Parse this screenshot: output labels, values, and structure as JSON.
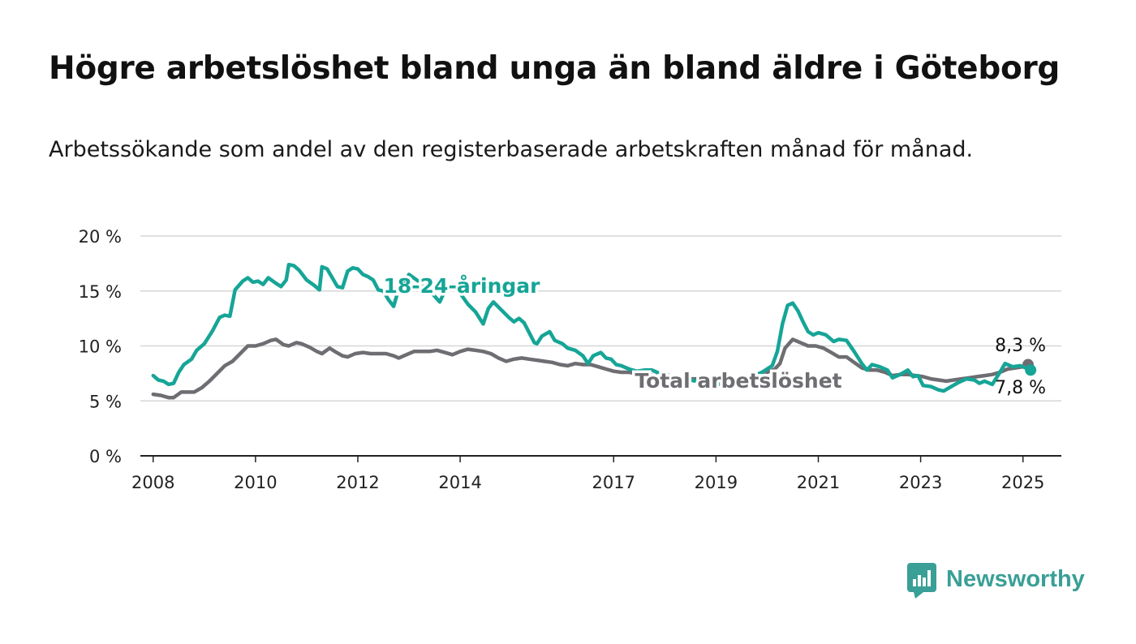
{
  "header": {
    "title": "Högre arbetslöshet bland unga än bland äldre i Göteborg",
    "subtitle": "Arbetssökande som andel av den registerbaserade arbetskraften månad för månad."
  },
  "brand": {
    "name": "Newsworthy",
    "icon": "bar-chart-speech-bubble-icon",
    "color": "#3a9f96"
  },
  "chart_data": {
    "type": "line",
    "x_unit": "year",
    "xlim": [
      2007.75,
      2025.75
    ],
    "ylim": [
      0,
      20
    ],
    "y_ticks": [
      {
        "value": 0,
        "label": "0 %"
      },
      {
        "value": 5,
        "label": "5 %"
      },
      {
        "value": 10,
        "label": "10 %"
      },
      {
        "value": 15,
        "label": "15 %"
      },
      {
        "value": 20,
        "label": "20 %"
      }
    ],
    "x_ticks": [
      {
        "value": 2008,
        "label": "2008"
      },
      {
        "value": 2010,
        "label": "2010"
      },
      {
        "value": 2012,
        "label": "2012"
      },
      {
        "value": 2014,
        "label": "2014"
      },
      {
        "value": 2017,
        "label": "2017"
      },
      {
        "value": 2019,
        "label": "2019"
      },
      {
        "value": 2021,
        "label": "2021"
      },
      {
        "value": 2023,
        "label": "2023"
      },
      {
        "value": 2025,
        "label": "2025"
      }
    ],
    "grid": "horizontal",
    "series": [
      {
        "name": "Total arbetslöshet",
        "color": "#6e6d72",
        "end_label": "8,3 %",
        "points": [
          [
            2008.0,
            5.6
          ],
          [
            2008.15,
            5.5
          ],
          [
            2008.3,
            5.3
          ],
          [
            2008.4,
            5.3
          ],
          [
            2008.55,
            5.8
          ],
          [
            2008.7,
            5.8
          ],
          [
            2008.8,
            5.8
          ],
          [
            2008.95,
            6.2
          ],
          [
            2009.1,
            6.8
          ],
          [
            2009.25,
            7.5
          ],
          [
            2009.4,
            8.2
          ],
          [
            2009.55,
            8.6
          ],
          [
            2009.7,
            9.3
          ],
          [
            2009.85,
            10.0
          ],
          [
            2010.0,
            10.0
          ],
          [
            2010.15,
            10.2
          ],
          [
            2010.3,
            10.5
          ],
          [
            2010.4,
            10.6
          ],
          [
            2010.55,
            10.1
          ],
          [
            2010.65,
            10.0
          ],
          [
            2010.8,
            10.3
          ],
          [
            2010.9,
            10.2
          ],
          [
            2011.05,
            9.9
          ],
          [
            2011.2,
            9.5
          ],
          [
            2011.3,
            9.3
          ],
          [
            2011.45,
            9.8
          ],
          [
            2011.55,
            9.5
          ],
          [
            2011.7,
            9.1
          ],
          [
            2011.8,
            9.0
          ],
          [
            2011.95,
            9.3
          ],
          [
            2012.1,
            9.4
          ],
          [
            2012.25,
            9.3
          ],
          [
            2012.4,
            9.3
          ],
          [
            2012.55,
            9.3
          ],
          [
            2012.7,
            9.1
          ],
          [
            2012.8,
            8.9
          ],
          [
            2012.95,
            9.2
          ],
          [
            2013.1,
            9.5
          ],
          [
            2013.25,
            9.5
          ],
          [
            2013.4,
            9.5
          ],
          [
            2013.55,
            9.6
          ],
          [
            2013.7,
            9.4
          ],
          [
            2013.85,
            9.2
          ],
          [
            2014.0,
            9.5
          ],
          [
            2014.15,
            9.7
          ],
          [
            2014.3,
            9.6
          ],
          [
            2014.45,
            9.5
          ],
          [
            2014.6,
            9.3
          ],
          [
            2014.75,
            8.9
          ],
          [
            2014.9,
            8.6
          ],
          [
            2015.05,
            8.8
          ],
          [
            2015.2,
            8.9
          ],
          [
            2015.35,
            8.8
          ],
          [
            2015.5,
            8.7
          ],
          [
            2015.65,
            8.6
          ],
          [
            2015.8,
            8.5
          ],
          [
            2015.95,
            8.3
          ],
          [
            2016.1,
            8.2
          ],
          [
            2016.25,
            8.4
          ],
          [
            2016.4,
            8.3
          ],
          [
            2016.55,
            8.3
          ],
          [
            2016.7,
            8.1
          ],
          [
            2016.85,
            7.9
          ],
          [
            2017.0,
            7.7
          ],
          [
            2017.15,
            7.6
          ],
          [
            2017.3,
            7.6
          ],
          [
            2017.45,
            7.5
          ],
          [
            2017.6,
            7.4
          ],
          [
            2017.8,
            7.3
          ],
          [
            2018.0,
            7.2
          ],
          [
            2018.2,
            7.1
          ],
          [
            2018.4,
            7.0
          ],
          [
            2018.6,
            7.0
          ],
          [
            2018.8,
            6.9
          ],
          [
            2019.0,
            7.0
          ],
          [
            2019.2,
            7.0
          ],
          [
            2019.4,
            7.0
          ],
          [
            2019.6,
            7.1
          ],
          [
            2019.8,
            7.3
          ],
          [
            2020.0,
            7.6
          ],
          [
            2020.15,
            7.9
          ],
          [
            2020.25,
            8.4
          ],
          [
            2020.35,
            9.8
          ],
          [
            2020.5,
            10.6
          ],
          [
            2020.65,
            10.3
          ],
          [
            2020.8,
            10.0
          ],
          [
            2020.95,
            10.0
          ],
          [
            2021.1,
            9.8
          ],
          [
            2021.25,
            9.4
          ],
          [
            2021.4,
            9.0
          ],
          [
            2021.55,
            9.0
          ],
          [
            2021.7,
            8.5
          ],
          [
            2021.85,
            8.0
          ],
          [
            2022.0,
            7.8
          ],
          [
            2022.15,
            7.8
          ],
          [
            2022.3,
            7.6
          ],
          [
            2022.45,
            7.3
          ],
          [
            2022.6,
            7.4
          ],
          [
            2022.75,
            7.4
          ],
          [
            2022.9,
            7.3
          ],
          [
            2023.05,
            7.2
          ],
          [
            2023.2,
            7.0
          ],
          [
            2023.35,
            6.9
          ],
          [
            2023.5,
            6.8
          ],
          [
            2023.65,
            6.9
          ],
          [
            2023.8,
            7.0
          ],
          [
            2023.95,
            7.1
          ],
          [
            2024.1,
            7.2
          ],
          [
            2024.25,
            7.3
          ],
          [
            2024.4,
            7.4
          ],
          [
            2024.55,
            7.6
          ],
          [
            2024.7,
            7.9
          ],
          [
            2024.85,
            8.0
          ],
          [
            2025.0,
            8.1
          ],
          [
            2025.1,
            8.3
          ]
        ]
      },
      {
        "name": "18-24-åringar",
        "color": "#16a597",
        "end_label": "7,8 %",
        "points": [
          [
            2008.0,
            7.3
          ],
          [
            2008.1,
            6.9
          ],
          [
            2008.2,
            6.8
          ],
          [
            2008.3,
            6.5
          ],
          [
            2008.4,
            6.6
          ],
          [
            2008.5,
            7.6
          ],
          [
            2008.6,
            8.3
          ],
          [
            2008.75,
            8.8
          ],
          [
            2008.85,
            9.6
          ],
          [
            2009.0,
            10.2
          ],
          [
            2009.15,
            11.3
          ],
          [
            2009.3,
            12.6
          ],
          [
            2009.4,
            12.8
          ],
          [
            2009.5,
            12.7
          ],
          [
            2009.6,
            15.1
          ],
          [
            2009.75,
            15.9
          ],
          [
            2009.85,
            16.2
          ],
          [
            2009.95,
            15.8
          ],
          [
            2010.05,
            15.9
          ],
          [
            2010.15,
            15.6
          ],
          [
            2010.25,
            16.2
          ],
          [
            2010.4,
            15.7
          ],
          [
            2010.5,
            15.4
          ],
          [
            2010.6,
            16.0
          ],
          [
            2010.65,
            17.4
          ],
          [
            2010.75,
            17.3
          ],
          [
            2010.85,
            16.9
          ],
          [
            2011.0,
            16.0
          ],
          [
            2011.15,
            15.5
          ],
          [
            2011.25,
            15.1
          ],
          [
            2011.3,
            17.2
          ],
          [
            2011.4,
            17.0
          ],
          [
            2011.5,
            16.2
          ],
          [
            2011.6,
            15.4
          ],
          [
            2011.7,
            15.3
          ],
          [
            2011.8,
            16.8
          ],
          [
            2011.9,
            17.1
          ],
          [
            2012.0,
            17.0
          ],
          [
            2012.1,
            16.5
          ],
          [
            2012.2,
            16.3
          ],
          [
            2012.3,
            16.0
          ],
          [
            2012.4,
            15.1
          ],
          [
            2012.5,
            15.0
          ],
          [
            2012.6,
            14.2
          ],
          [
            2012.7,
            13.6
          ],
          [
            2012.8,
            15.2
          ],
          [
            2012.9,
            15.6
          ],
          [
            2013.0,
            16.5
          ],
          [
            2013.15,
            16.0
          ],
          [
            2013.3,
            15.5
          ],
          [
            2013.45,
            14.8
          ],
          [
            2013.6,
            14.0
          ],
          [
            2013.7,
            15.0
          ],
          [
            2013.85,
            15.6
          ],
          [
            2014.0,
            14.8
          ],
          [
            2014.15,
            13.8
          ],
          [
            2014.3,
            13.1
          ],
          [
            2014.45,
            12.0
          ],
          [
            2014.55,
            13.4
          ],
          [
            2014.65,
            14.0
          ],
          [
            2014.8,
            13.3
          ],
          [
            2014.95,
            12.6
          ],
          [
            2015.05,
            12.2
          ],
          [
            2015.15,
            12.5
          ],
          [
            2015.25,
            12.1
          ],
          [
            2015.35,
            11.2
          ],
          [
            2015.45,
            10.3
          ],
          [
            2015.5,
            10.2
          ],
          [
            2015.6,
            10.9
          ],
          [
            2015.75,
            11.3
          ],
          [
            2015.85,
            10.5
          ],
          [
            2016.0,
            10.2
          ],
          [
            2016.1,
            9.8
          ],
          [
            2016.25,
            9.6
          ],
          [
            2016.4,
            9.1
          ],
          [
            2016.5,
            8.4
          ],
          [
            2016.6,
            9.1
          ],
          [
            2016.75,
            9.4
          ],
          [
            2016.85,
            8.9
          ],
          [
            2016.95,
            8.8
          ],
          [
            2017.05,
            8.3
          ],
          [
            2017.15,
            8.2
          ],
          [
            2017.3,
            7.9
          ],
          [
            2017.45,
            7.7
          ],
          [
            2017.6,
            7.8
          ],
          [
            2017.75,
            7.8
          ],
          [
            2017.9,
            7.5
          ],
          [
            2018.1,
            7.3
          ],
          [
            2018.3,
            7.1
          ],
          [
            2018.5,
            6.9
          ],
          [
            2018.7,
            6.7
          ],
          [
            2018.9,
            6.6
          ],
          [
            2019.1,
            6.5
          ],
          [
            2019.3,
            6.6
          ],
          [
            2019.5,
            6.9
          ],
          [
            2019.7,
            7.2
          ],
          [
            2019.9,
            7.6
          ],
          [
            2020.1,
            8.2
          ],
          [
            2020.2,
            9.5
          ],
          [
            2020.3,
            12.0
          ],
          [
            2020.4,
            13.7
          ],
          [
            2020.5,
            13.9
          ],
          [
            2020.6,
            13.2
          ],
          [
            2020.7,
            12.2
          ],
          [
            2020.8,
            11.3
          ],
          [
            2020.9,
            11.0
          ],
          [
            2021.0,
            11.2
          ],
          [
            2021.15,
            11.0
          ],
          [
            2021.3,
            10.4
          ],
          [
            2021.4,
            10.6
          ],
          [
            2021.55,
            10.5
          ],
          [
            2021.7,
            9.5
          ],
          [
            2021.85,
            8.4
          ],
          [
            2021.95,
            7.8
          ],
          [
            2022.05,
            8.3
          ],
          [
            2022.2,
            8.1
          ],
          [
            2022.35,
            7.8
          ],
          [
            2022.45,
            7.1
          ],
          [
            2022.6,
            7.4
          ],
          [
            2022.75,
            7.8
          ],
          [
            2022.85,
            7.2
          ],
          [
            2022.95,
            7.3
          ],
          [
            2023.05,
            6.4
          ],
          [
            2023.2,
            6.3
          ],
          [
            2023.35,
            6.0
          ],
          [
            2023.45,
            5.9
          ],
          [
            2023.6,
            6.3
          ],
          [
            2023.75,
            6.7
          ],
          [
            2023.9,
            7.0
          ],
          [
            2024.05,
            6.9
          ],
          [
            2024.15,
            6.6
          ],
          [
            2024.25,
            6.8
          ],
          [
            2024.4,
            6.5
          ],
          [
            2024.55,
            7.6
          ],
          [
            2024.65,
            8.4
          ],
          [
            2024.8,
            8.1
          ],
          [
            2024.95,
            8.2
          ],
          [
            2025.05,
            8.0
          ],
          [
            2025.15,
            7.8
          ]
        ]
      }
    ]
  }
}
